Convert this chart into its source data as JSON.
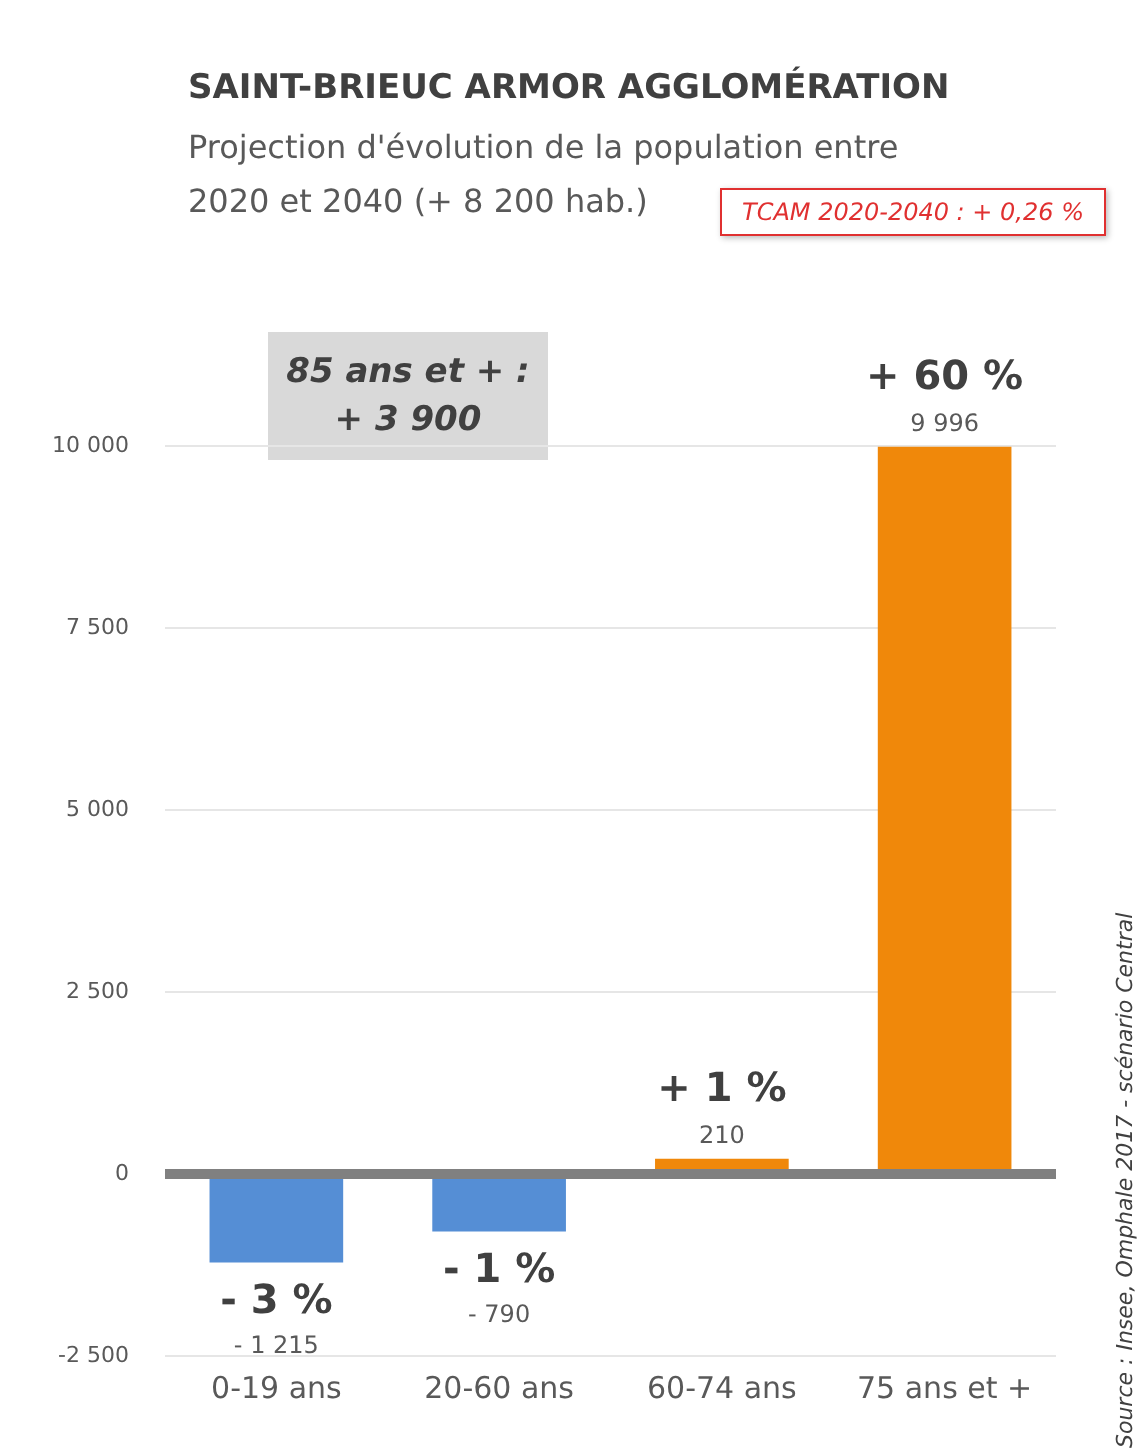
{
  "chart_data": {
    "type": "bar",
    "title": "SAINT-BRIEUC ARMOR AGGLOMÉRATION",
    "subtitle": "Projection d'évolution de la population entre 2020 et 2040 (+ 8 200 hab.)",
    "categories": [
      "0-19 ans",
      "20-60 ans",
      "60-74 ans",
      "75 ans et +"
    ],
    "values": [
      -1215,
      -790,
      210,
      9996
    ],
    "colors": [
      "#558ed5",
      "#558ed5",
      "#f0880a",
      "#f0880a"
    ],
    "value_labels": [
      "- 1 215",
      "- 790",
      "210",
      "9 996"
    ],
    "ylim": [
      -2500,
      11500
    ],
    "yticks": [
      {
        "value": -2500,
        "label": "-2 500"
      },
      0,
      {
        "value": 2500,
        "label": "2 500"
      },
      {
        "value": 5000,
        "label": "5 000"
      },
      {
        "value": 7500,
        "label": "7 500"
      },
      {
        "value": 10000,
        "label": "10 000"
      }
    ],
    "grid": "y",
    "annotations": [
      "TCAM 2020-2040 : + 0,26 %",
      "85 ans et + : + 3 900",
      "Source : Insee, Omphale 2017 - scénario Central",
      {
        "text": "- 3 %",
        "x": "0-19 ans",
        "y": -1215
      },
      {
        "text": "- 1 %",
        "x": "20-60 ans",
        "y": -790
      },
      {
        "text": "+ 1 %",
        "x": "60-74 ans",
        "y": 210
      },
      {
        "text": "+ 60 %",
        "x": "75 ans et +",
        "y": 9996
      }
    ]
  }
}
